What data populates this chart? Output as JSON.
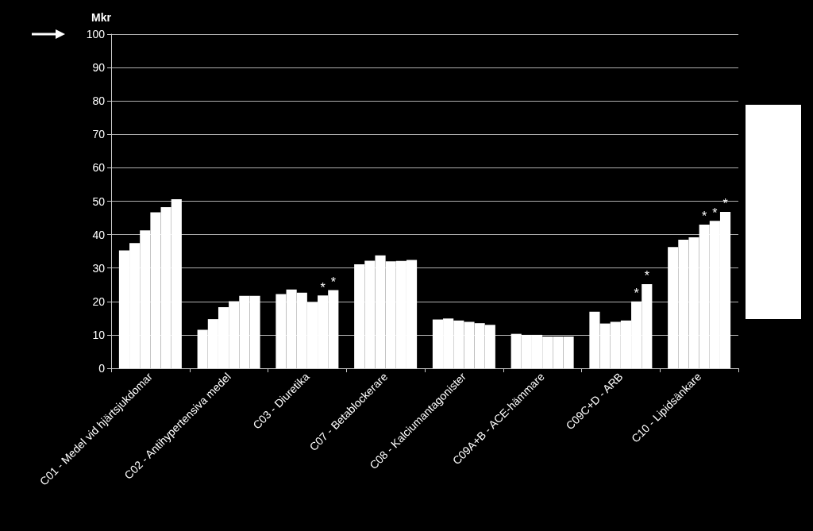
{
  "chart_data": {
    "type": "bar",
    "ylabel": "Mkr",
    "categories": [
      "C01 - Medel vid hjärtsjukdomar",
      "C02 - Antihypertensiva medel",
      "C03 - Diuretika",
      "C07 - Betablockerare",
      "C08 - Kalciumantagonister",
      "C09A+B - ACE-hämmare",
      "C09C+D - ARB",
      "C10 - Lipidsänkare"
    ],
    "series": [
      {
        "color": "#ffffff",
        "values": [
          35.3,
          11.5,
          22.2,
          31.1,
          14.6,
          10.3,
          16.9,
          36.3
        ]
      },
      {
        "color": "#ffffff",
        "values": [
          37.5,
          14.7,
          23.6,
          32.2,
          14.9,
          10.0,
          13.4,
          38.5
        ]
      },
      {
        "color": "#ffffff",
        "values": [
          41.3,
          18.3,
          22.6,
          33.8,
          14.3,
          10.0,
          13.9,
          39.2
        ]
      },
      {
        "color": "#ffffff",
        "values": [
          46.7,
          20.1,
          19.7,
          32.0,
          13.9,
          9.5,
          14.3,
          43.0
        ],
        "value_labels": [
          null,
          null,
          null,
          null,
          null,
          null,
          null,
          "*"
        ]
      },
      {
        "color": "#ffffff",
        "values": [
          48.2,
          21.7,
          21.8,
          32.1,
          13.5,
          9.5,
          20.0,
          44.1
        ],
        "value_labels": [
          null,
          null,
          "*",
          null,
          null,
          null,
          "*",
          "*"
        ]
      },
      {
        "color": "#ffffff",
        "values": [
          50.6,
          21.7,
          23.4,
          32.4,
          13.0,
          9.5,
          25.2,
          46.8
        ],
        "value_labels": [
          null,
          null,
          "*",
          null,
          null,
          null,
          "*",
          "*"
        ]
      }
    ],
    "ylim": [
      0,
      100
    ],
    "yticks": [
      0,
      10,
      20,
      30,
      40,
      50,
      60,
      70,
      80,
      90,
      100
    ],
    "grid": "y"
  }
}
